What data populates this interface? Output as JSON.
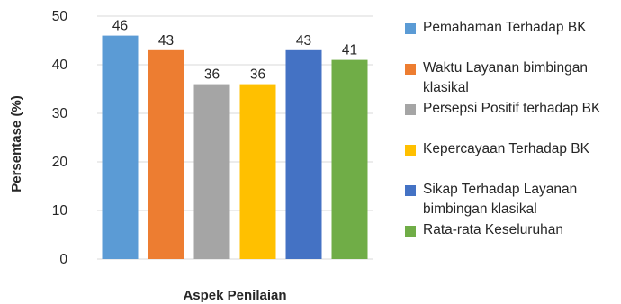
{
  "chart_data": {
    "type": "bar",
    "title": "",
    "xlabel": "Aspek Penilaian",
    "ylabel": "Persentase (%)",
    "ylim": [
      0,
      50
    ],
    "yticks": [
      0,
      10,
      20,
      30,
      40,
      50
    ],
    "grid": true,
    "legend_position": "right",
    "series": [
      {
        "name": "Pemahaman Terhadap BK",
        "value": 46,
        "color": "#5b9bd5",
        "label": "46"
      },
      {
        "name": "Waktu Layanan bimbingan klasikal",
        "value": 43,
        "color": "#ed7d31",
        "label": "43"
      },
      {
        "name": "Persepsi Positif terhadap BK",
        "value": 36,
        "color": "#a5a5a5",
        "label": "36"
      },
      {
        "name": "Kepercayaan Terhadap BK",
        "value": 36,
        "color": "#ffc000",
        "label": "36"
      },
      {
        "name": "Sikap Terhadap Layanan bimbingan klasikal",
        "value": 43,
        "color": "#4472c4",
        "label": "43"
      },
      {
        "name": "Rata-rata Keseluruhan",
        "value": 41,
        "color": "#70ad47",
        "label": "41"
      }
    ]
  }
}
